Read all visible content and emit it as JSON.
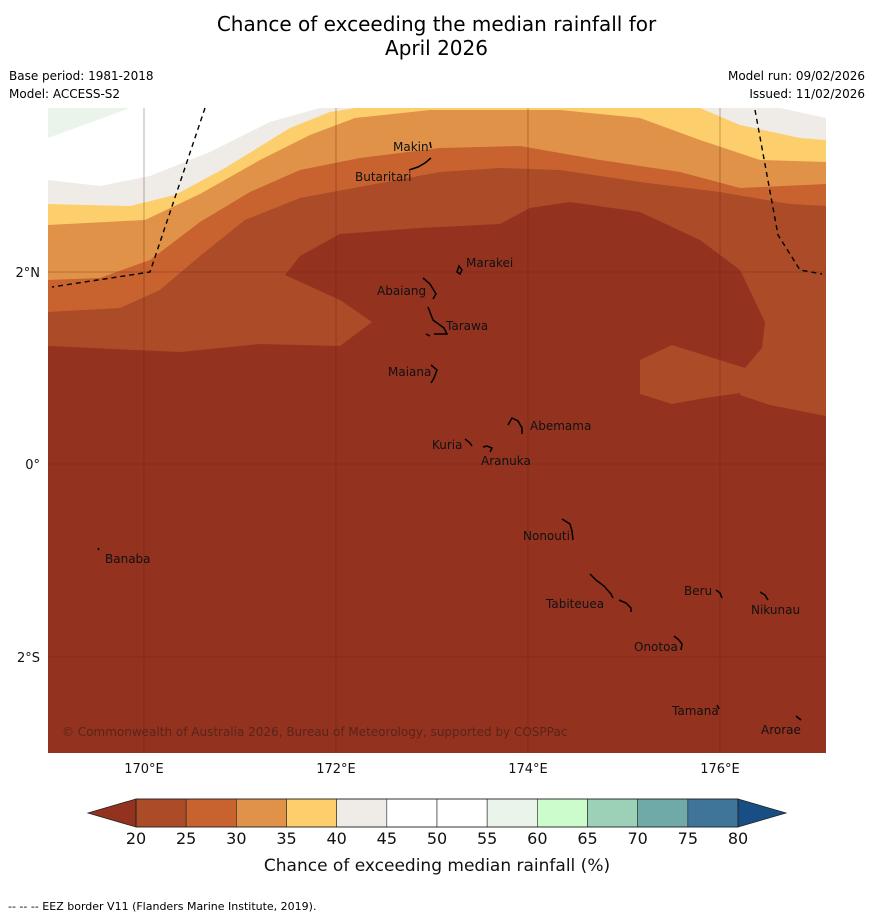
{
  "title": {
    "line1": "Chance of exceeding the median rainfall for",
    "line2": "April 2026"
  },
  "meta": {
    "base_period": "Base period: 1981-2018",
    "model": "Model: ACCESS-S2",
    "model_run": "Model run: 09/02/2026",
    "issued": "Issued: 11/02/2026"
  },
  "colors": {
    "c_20_25": "#ab4b28",
    "c_25_30": "#c8622f",
    "c_30_35": "#e09248",
    "c_35_40": "#fdcf6c",
    "c_40_45": "#efebe6",
    "c_45_50": "#ffffff",
    "c_50_55": "#ffffff",
    "c_55_60": "#eaf4ea",
    "c_60_65": "#ccfccc",
    "c_65_70": "#9cd1b8",
    "c_70_75": "#6fa9a8",
    "c_75_80": "#3f7598",
    "low_extend": "#943220",
    "high_extend": "#174f84"
  },
  "axes": {
    "lon_labels": [
      "170°E",
      "172°E",
      "174°E",
      "176°E"
    ],
    "lat_labels": [
      "2°N",
      "0°",
      "2°S"
    ]
  },
  "places": [
    "Makin",
    "Butaritari",
    "Marakei",
    "Abaiang",
    "Tarawa",
    "Maiana",
    "Abemama",
    "Kuria",
    "Aranuka",
    "Nonouti",
    "Banaba",
    "Beru",
    "Nikunau",
    "Tabiteuea",
    "Onotoa",
    "Tamana",
    "Arorae"
  ],
  "copyright": "© Commonwealth of Australia 2026, Bureau of Meteorology, supported by COSPPac",
  "colorbar": {
    "ticks": [
      "20",
      "25",
      "30",
      "35",
      "40",
      "45",
      "50",
      "55",
      "60",
      "65",
      "70",
      "75",
      "80"
    ],
    "label": "Chance of exceeding median rainfall (%)"
  },
  "footnote": "--  --  -- EEZ border V11 (Flanders Marine Institute, 2019)."
}
